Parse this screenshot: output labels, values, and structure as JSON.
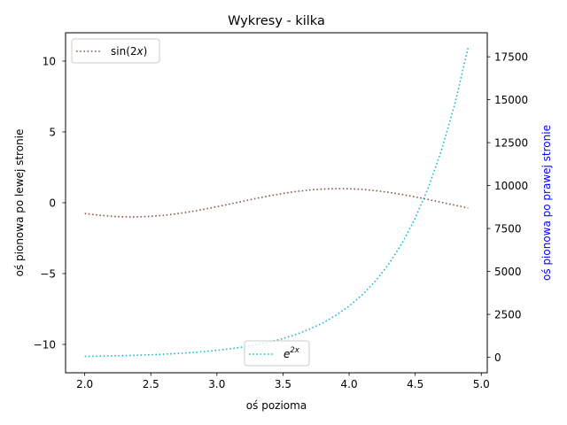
{
  "chart_data": {
    "type": "line",
    "title": "Wykresy - kilka",
    "xlabel": "oś pozioma",
    "ylabel_left": "oś pionowa po lewej stronie",
    "ylabel_right": "oś pionowa po prawej stronie",
    "xlim": [
      1.855,
      5.045
    ],
    "ylim_left": [
      -12,
      12
    ],
    "ylim_right": [
      -900,
      18900
    ],
    "x_ticks": [
      "2.0",
      "2.5",
      "3.0",
      "3.5",
      "4.0",
      "4.5",
      "5.0"
    ],
    "y_ticks_left": [
      "−10",
      "−5",
      "0",
      "5",
      "10"
    ],
    "y_ticks_right": [
      "0",
      "2500",
      "5000",
      "7500",
      "10000",
      "12500",
      "15000",
      "17500"
    ],
    "grid": false,
    "series": [
      {
        "name": "sin(2x)",
        "axis": "left",
        "color": "#8c564b",
        "style": "dotted",
        "legend_position": "upper-left",
        "x": [
          2.0,
          2.1,
          2.2,
          2.3,
          2.4,
          2.5,
          2.6,
          2.7,
          2.8,
          2.9,
          3.0,
          3.1,
          3.2,
          3.3,
          3.4,
          3.5,
          3.6,
          3.7,
          3.8,
          3.9,
          4.0,
          4.1,
          4.2,
          4.3,
          4.4,
          4.5,
          4.6,
          4.7,
          4.8,
          4.9
        ],
        "y": [
          -0.757,
          -0.872,
          -0.952,
          -0.994,
          -0.996,
          -0.959,
          -0.883,
          -0.773,
          -0.631,
          -0.465,
          -0.279,
          -0.083,
          0.117,
          0.312,
          0.494,
          0.657,
          0.794,
          0.899,
          0.968,
          0.999,
          0.989,
          0.941,
          0.855,
          0.735,
          0.585,
          0.412,
          0.223,
          0.025,
          -0.174,
          -0.366
        ]
      },
      {
        "name": "e^{2x}",
        "axis": "right",
        "color": "#17becf",
        "style": "dotted",
        "legend_position": "lower-center",
        "x": [
          2.0,
          2.1,
          2.2,
          2.3,
          2.4,
          2.5,
          2.6,
          2.7,
          2.8,
          2.9,
          3.0,
          3.1,
          3.2,
          3.3,
          3.4,
          3.5,
          3.6,
          3.7,
          3.8,
          3.9,
          4.0,
          4.1,
          4.2,
          4.3,
          4.4,
          4.5,
          4.6,
          4.7,
          4.8,
          4.9
        ],
        "y": [
          54.6,
          66.7,
          81.5,
          99.5,
          121.5,
          148.4,
          181.3,
          221.4,
          270.4,
          330.3,
          403.4,
          492.7,
          601.8,
          735.1,
          897.8,
          1096.6,
          1339.4,
          1636.0,
          1998.2,
          2440.6,
          2981.0,
          3641.0,
          4447.1,
          5431.7,
          6634.2,
          8103.1,
          9897.1,
          12088.4,
          14764.8,
          18033.7
        ]
      }
    ],
    "colors": {
      "right_axis_label": "#0000ff"
    }
  }
}
